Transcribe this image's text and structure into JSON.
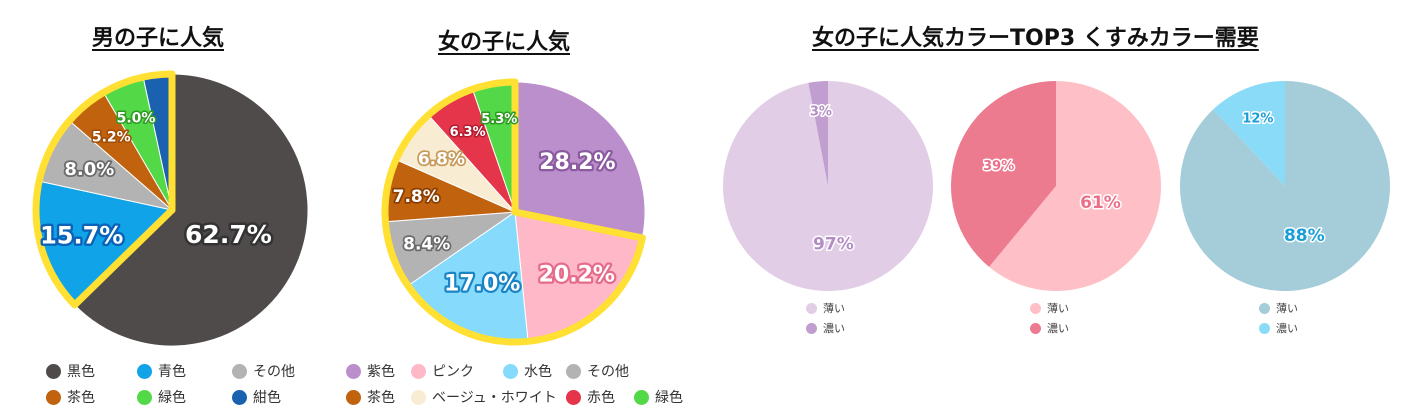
{
  "chart_data": [
    {
      "type": "pie",
      "title": "男の子に人気",
      "slices": [
        {
          "label": "黒色",
          "value": 62.7,
          "value_label": "62.7%",
          "color": "#4f4b4b"
        },
        {
          "label": "青色",
          "value": 15.7,
          "value_label": "15.7%",
          "color": "#11a3e8"
        },
        {
          "label": "その他",
          "value": 8.0,
          "value_label": "8.0%",
          "color": "#b3b3b3"
        },
        {
          "label": "茶色",
          "value": 5.2,
          "value_label": "5.2%",
          "color": "#c0620e"
        },
        {
          "label": "緑色",
          "value": 5.0,
          "value_label": "5.0%",
          "color": "#53d948"
        },
        {
          "label": "紺色",
          "value": 3.4,
          "value_label": "",
          "color": "#1a62b0"
        }
      ],
      "legend": [
        "黒色",
        "青色",
        "その他",
        "茶色",
        "緑色",
        "紺色"
      ],
      "border_color": "#ffe033"
    },
    {
      "type": "pie",
      "title": "女の子に人気",
      "slices": [
        {
          "label": "紫色",
          "value": 28.2,
          "value_label": "28.2%",
          "color": "#bb8fcc"
        },
        {
          "label": "ピンク",
          "value": 20.2,
          "value_label": "20.2%",
          "color": "#ffb8c8"
        },
        {
          "label": "水色",
          "value": 17.0,
          "value_label": "17.0%",
          "color": "#86dafc"
        },
        {
          "label": "その他",
          "value": 8.4,
          "value_label": "8.4%",
          "color": "#b3b3b3"
        },
        {
          "label": "茶色",
          "value": 7.8,
          "value_label": "7.8%",
          "color": "#c0620e"
        },
        {
          "label": "ベージュ・ホワイト",
          "value": 6.8,
          "value_label": "6.8%",
          "color": "#f8ecd3"
        },
        {
          "label": "赤色",
          "value": 6.3,
          "value_label": "6.3%",
          "color": "#e5354a"
        },
        {
          "label": "緑色",
          "value": 5.3,
          "value_label": "5.3%",
          "color": "#53d948"
        }
      ],
      "legend": [
        "紫色",
        "ピンク",
        "水色",
        "その他",
        "茶色",
        "ベージュ・ホワイト",
        "赤色",
        "緑色"
      ],
      "border_color": "#ffe033"
    },
    {
      "type": "pie",
      "group_title": "女の子に人気カラーTOP3 くすみカラー需要",
      "slices": [
        {
          "label": "薄い",
          "value": 97,
          "value_label": "97%",
          "color": "#e2cde6"
        },
        {
          "label": "濃い",
          "value": 3,
          "value_label": "3%",
          "color": "#c09fd0"
        }
      ],
      "legend": [
        "薄い",
        "濃い"
      ],
      "label_color": "#b48cc4"
    },
    {
      "type": "pie",
      "slices": [
        {
          "label": "薄い",
          "value": 61,
          "value_label": "61%",
          "color": "#ffbfc6"
        },
        {
          "label": "濃い",
          "value": 39,
          "value_label": "39%",
          "color": "#ec7b90"
        }
      ],
      "legend": [
        "薄い",
        "濃い"
      ],
      "label_color": "#ec6f88"
    },
    {
      "type": "pie",
      "slices": [
        {
          "label": "薄い",
          "value": 88,
          "value_label": "88%",
          "color": "#a5ccd9"
        },
        {
          "label": "濃い",
          "value": 12,
          "value_label": "12%",
          "color": "#8adbf7"
        }
      ],
      "legend": [
        "薄い",
        "濃い"
      ],
      "label_color": "#1a9ed8"
    }
  ]
}
